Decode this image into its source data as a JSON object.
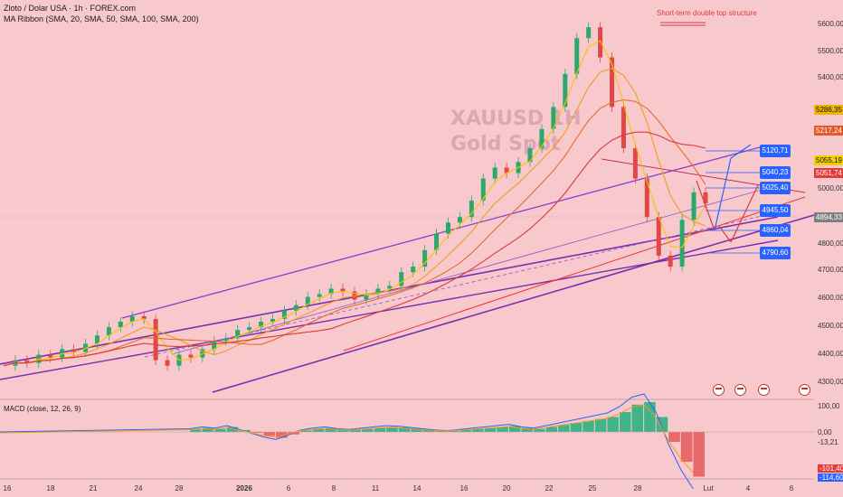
{
  "header": {
    "symbol_line": "Zloto / Dolar USA · 1h · FOREX.com",
    "indicator_line": "MA Ribbon (SMA, 20, SMA, 50, SMA, 100, SMA, 200)"
  },
  "watermark": {
    "line1": "XAUUSD 1H",
    "line2": "Gold Spot"
  },
  "annotation": "Short-term double top structure",
  "price_ticks": [
    "5600,00",
    "5500,00",
    "5400,00",
    "5000,00",
    "4800,00",
    "4700,00",
    "4600,00",
    "4500,00",
    "4400,00",
    "4300,00"
  ],
  "price_tags": [
    {
      "text": "5286,35",
      "color": "#f0b400"
    },
    {
      "text": "5217,24",
      "color": "#e45a2b"
    },
    {
      "text": "5055,19",
      "color": "#f5d000"
    },
    {
      "text": "5051,74",
      "color": "#e43a3a"
    },
    {
      "text": "4894,33",
      "color": "#808080"
    }
  ],
  "level_labels": [
    "5120,71",
    "5040,23",
    "5025,40",
    "4945,50",
    "4860,04",
    "4790,60"
  ],
  "macd": {
    "title": "MACD (close, 12, 26, 9)",
    "ticks": [
      "100,00",
      "0,00",
      "-13,21",
      "-101,40",
      "-114,60"
    ]
  },
  "dates": [
    {
      "t": "16",
      "bold": false
    },
    {
      "t": "18",
      "bold": false
    },
    {
      "t": "21",
      "bold": false
    },
    {
      "t": "24",
      "bold": false
    },
    {
      "t": "28",
      "bold": false
    },
    {
      "t": "2026",
      "bold": true
    },
    {
      "t": "6",
      "bold": false
    },
    {
      "t": "8",
      "bold": false
    },
    {
      "t": "11",
      "bold": false
    },
    {
      "t": "14",
      "bold": false
    },
    {
      "t": "16",
      "bold": false
    },
    {
      "t": "20",
      "bold": false
    },
    {
      "t": "22",
      "bold": false
    },
    {
      "t": "25",
      "bold": false
    },
    {
      "t": "28",
      "bold": false
    },
    {
      "t": "Lut",
      "bold": false
    },
    {
      "t": "4",
      "bold": false
    },
    {
      "t": "6",
      "bold": false
    }
  ],
  "chart_data": {
    "type": "line",
    "y_range": [
      4250,
      5650
    ],
    "close_series": [
      4360,
      4380,
      4370,
      4400,
      4390,
      4420,
      4410,
      4440,
      4470,
      4500,
      4520,
      4540,
      4530,
      4380,
      4360,
      4400,
      4390,
      4420,
      4450,
      4460,
      4490,
      4500,
      4520,
      4530,
      4560,
      4580,
      4610,
      4620,
      4640,
      4630,
      4600,
      4620,
      4640,
      4650,
      4700,
      4720,
      4780,
      4840,
      4880,
      4900,
      4960,
      5040,
      5080,
      5060,
      5100,
      5150,
      5220,
      5300,
      5420,
      5550,
      5590,
      5480,
      5300,
      5150,
      5040,
      4900,
      4760,
      4720,
      4890,
      4990,
      4950
    ],
    "macd_hist": [
      5,
      8,
      6,
      10,
      4,
      -2,
      -8,
      -12,
      -5,
      3,
      6,
      8,
      5,
      4,
      6,
      8,
      10,
      9,
      7,
      5,
      3,
      2,
      4,
      6,
      8,
      10,
      12,
      8,
      6,
      10,
      14,
      18,
      22,
      26,
      30,
      40,
      55,
      60,
      30,
      -20,
      -60,
      -90
    ]
  }
}
